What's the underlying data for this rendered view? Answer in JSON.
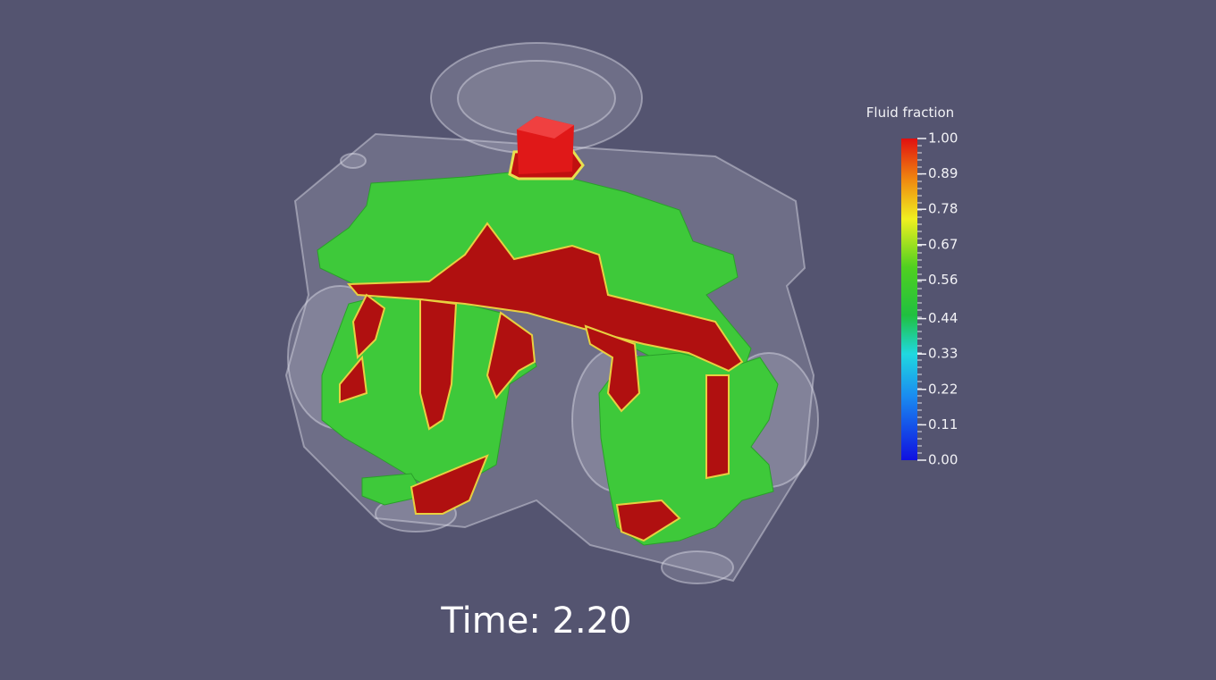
{
  "colorbar": {
    "title": "Fluid fraction",
    "range": [
      0,
      1
    ],
    "ticks": [
      {
        "value": 0,
        "label": "0.00"
      },
      {
        "value": 0.11,
        "label": "0.11"
      },
      {
        "value": 0.22,
        "label": "0.22"
      },
      {
        "value": 0.33,
        "label": "0.33"
      },
      {
        "value": 0.44,
        "label": "0.44"
      },
      {
        "value": 0.56,
        "label": "0.56"
      },
      {
        "value": 0.67,
        "label": "0.67"
      },
      {
        "value": 0.78,
        "label": "0.78"
      },
      {
        "value": 0.89,
        "label": "0.89"
      },
      {
        "value": 1,
        "label": "1.00"
      }
    ]
  },
  "time_label": "Time: 2.20"
}
